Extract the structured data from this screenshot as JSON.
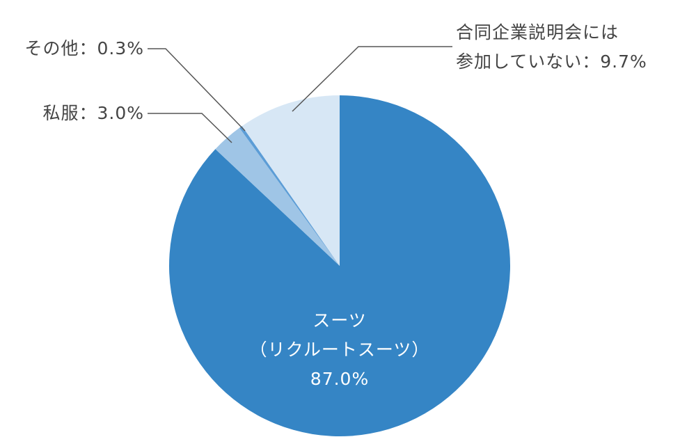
{
  "chart_data": {
    "type": "pie",
    "categories": [
      "スーツ\n（リクルートスーツ）",
      "私服",
      "その他",
      "合同企業説明会には\n参加していない"
    ],
    "values": [
      87.0,
      3.0,
      0.3,
      9.7
    ],
    "value_labels": [
      "87.0%",
      "3.0%",
      "0.3%",
      "9.7%"
    ],
    "separator": "：",
    "colors": [
      "#3585c5",
      "#9fc5e6",
      "#5c9dd6",
      "#d7e7f5"
    ]
  }
}
